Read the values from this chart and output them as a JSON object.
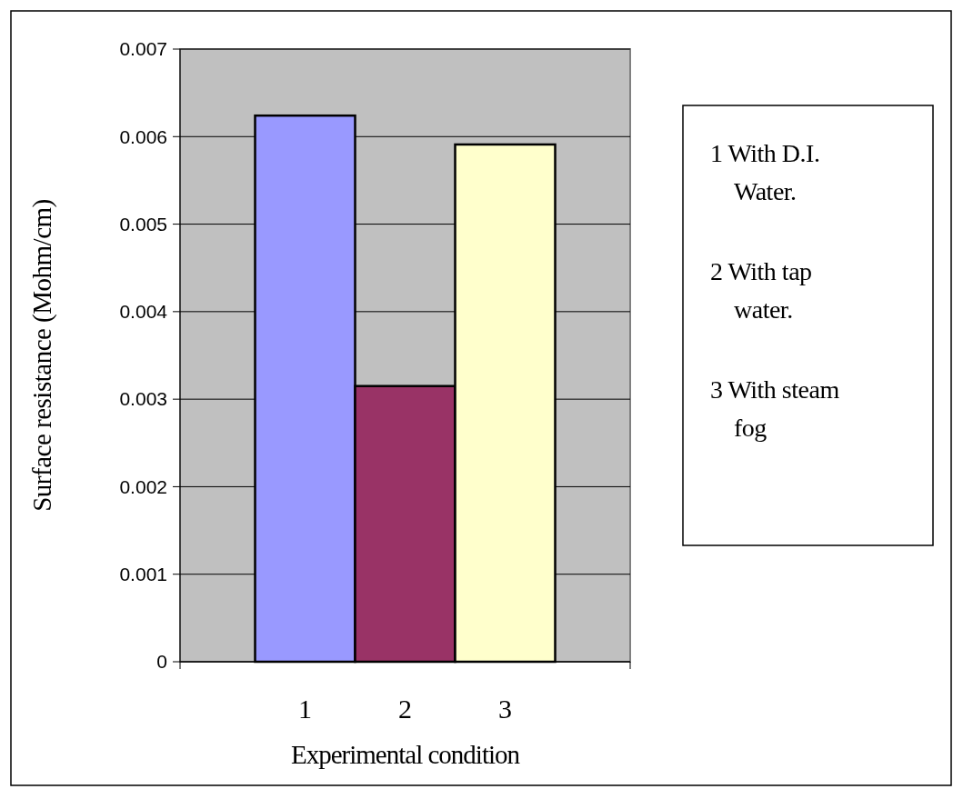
{
  "chart_data": {
    "type": "bar",
    "xlabel": "Experimental condition",
    "ylabel": "Surface resistance  (Mohm/cm)",
    "categories": [
      "1",
      "2",
      "3"
    ],
    "values": [
      0.00624,
      0.00315,
      0.00591
    ],
    "colors": [
      "#9999ff",
      "#993366",
      "#ffffcc"
    ],
    "ylim": [
      0,
      0.007
    ],
    "yticks": [
      0,
      0.001,
      0.002,
      0.003,
      0.004,
      0.005,
      0.006,
      0.007
    ],
    "grid": "y",
    "annotations": [
      "1 With D.I. Water.",
      "2  With tap water.",
      "3 With steam fog"
    ]
  }
}
